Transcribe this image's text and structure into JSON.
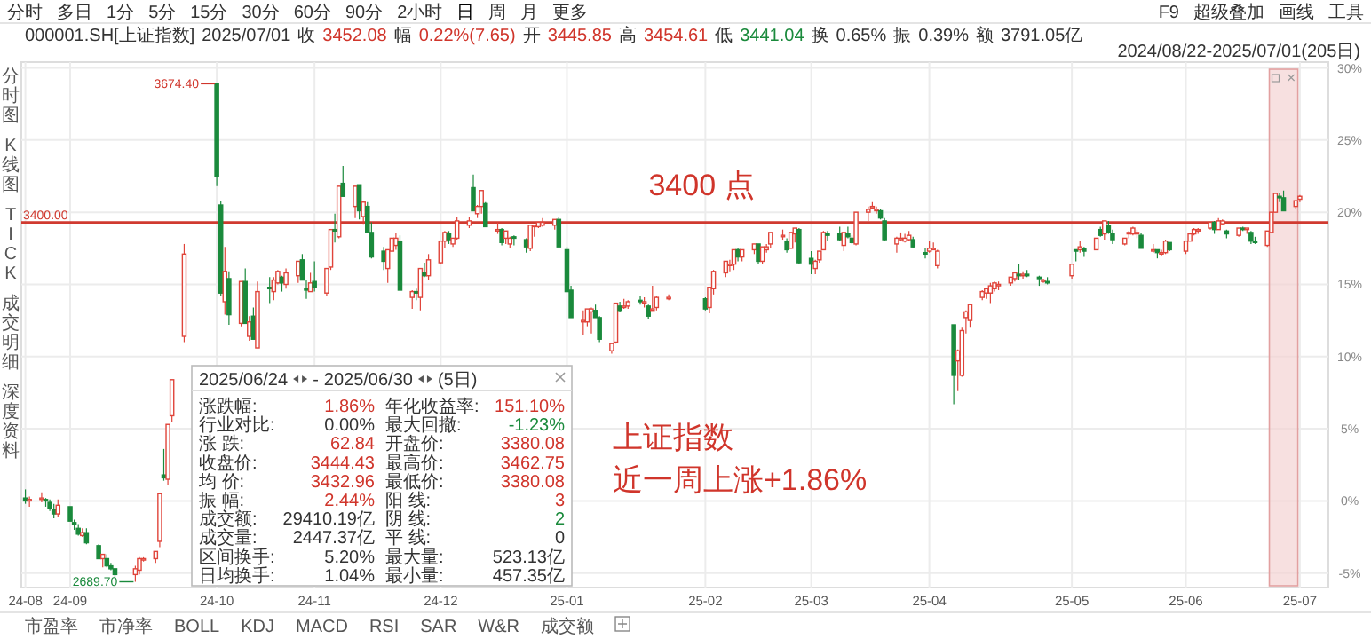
{
  "chart_data": {
    "type": "candlestick",
    "x": [
      "2024-08-22",
      "2024-08-23",
      "2024-08-26",
      "2024-08-27",
      "2024-08-28",
      "2024-08-29",
      "2024-08-30",
      "2024-09-02",
      "2024-09-03",
      "2024-09-04",
      "2024-09-05",
      "2024-09-06",
      "2024-09-09",
      "2024-09-10",
      "2024-09-11",
      "2024-09-12",
      "2024-09-13",
      "2024-09-18",
      "2024-09-19",
      "2024-09-20",
      "2024-09-23",
      "2024-09-24",
      "2024-09-25",
      "2024-09-26",
      "2024-09-27",
      "2024-09-30",
      "2024-10-08",
      "2024-10-09",
      "2024-10-10",
      "2024-10-11",
      "2024-10-14",
      "2024-10-15",
      "2024-10-16",
      "2024-10-17",
      "2024-10-18",
      "2024-10-21",
      "2024-10-22",
      "2024-10-23",
      "2024-10-24",
      "2024-10-25",
      "2024-10-28",
      "2024-10-29",
      "2024-10-30",
      "2024-10-31",
      "2024-11-01",
      "2024-11-04",
      "2024-11-05",
      "2024-11-06",
      "2024-11-07",
      "2024-11-08",
      "2024-11-11",
      "2024-11-12",
      "2024-11-13",
      "2024-11-14",
      "2024-11-15",
      "2024-11-18",
      "2024-11-19",
      "2024-11-20",
      "2024-11-21",
      "2024-11-22",
      "2024-11-25",
      "2024-11-26",
      "2024-11-27",
      "2024-11-28",
      "2024-11-29",
      "2024-12-02",
      "2024-12-03",
      "2024-12-04",
      "2024-12-05",
      "2024-12-06",
      "2024-12-09",
      "2024-12-10",
      "2024-12-11",
      "2024-12-12",
      "2024-12-13",
      "2024-12-16",
      "2024-12-17",
      "2024-12-18",
      "2024-12-19",
      "2024-12-20",
      "2024-12-23",
      "2024-12-24",
      "2024-12-25",
      "2024-12-26",
      "2024-12-27",
      "2024-12-30",
      "2024-12-31",
      "2025-01-02",
      "2025-01-03",
      "2025-01-06",
      "2025-01-07",
      "2025-01-08",
      "2025-01-09",
      "2025-01-10",
      "2025-01-13",
      "2025-01-14",
      "2025-01-15",
      "2025-01-16",
      "2025-01-17",
      "2025-01-20",
      "2025-01-21",
      "2025-01-22",
      "2025-01-23",
      "2025-01-24",
      "2025-01-27",
      "2025-02-05",
      "2025-02-06",
      "2025-02-07",
      "2025-02-10",
      "2025-02-11",
      "2025-02-12",
      "2025-02-13",
      "2025-02-14",
      "2025-02-17",
      "2025-02-18",
      "2025-02-19",
      "2025-02-20",
      "2025-02-21",
      "2025-02-24",
      "2025-02-25",
      "2025-02-26",
      "2025-02-27",
      "2025-02-28",
      "2025-03-03",
      "2025-03-04",
      "2025-03-05",
      "2025-03-06",
      "2025-03-07",
      "2025-03-10",
      "2025-03-11",
      "2025-03-12",
      "2025-03-13",
      "2025-03-14",
      "2025-03-17",
      "2025-03-18",
      "2025-03-19",
      "2025-03-20",
      "2025-03-21",
      "2025-03-24",
      "2025-03-25",
      "2025-03-26",
      "2025-03-27",
      "2025-03-28",
      "2025-03-31",
      "2025-04-01",
      "2025-04-02",
      "2025-04-03",
      "2025-04-07",
      "2025-04-08",
      "2025-04-09",
      "2025-04-10",
      "2025-04-11",
      "2025-04-14",
      "2025-04-15",
      "2025-04-16",
      "2025-04-17",
      "2025-04-18",
      "2025-04-21",
      "2025-04-22",
      "2025-04-23",
      "2025-04-24",
      "2025-04-25",
      "2025-04-28",
      "2025-04-29",
      "2025-04-30",
      "2025-05-06",
      "2025-05-07",
      "2025-05-08",
      "2025-05-09",
      "2025-05-12",
      "2025-05-13",
      "2025-05-14",
      "2025-05-15",
      "2025-05-16",
      "2025-05-19",
      "2025-05-20",
      "2025-05-21",
      "2025-05-22",
      "2025-05-23",
      "2025-05-26",
      "2025-05-27",
      "2025-05-28",
      "2025-05-29",
      "2025-05-30",
      "2025-06-03",
      "2025-06-04",
      "2025-06-05",
      "2025-06-06",
      "2025-06-09",
      "2025-06-10",
      "2025-06-11",
      "2025-06-12",
      "2025-06-13",
      "2025-06-16",
      "2025-06-17",
      "2025-06-18",
      "2025-06-19",
      "2025-06-20",
      "2025-06-23",
      "2025-06-24",
      "2025-06-25",
      "2025-06-26",
      "2025-06-27",
      "2025-06-30",
      "2025-07-01"
    ],
    "ohlc": [
      [
        0.2,
        0.8,
        -0.2,
        0.0
      ],
      [
        0.0,
        0.3,
        -0.4,
        0.1
      ],
      [
        0.1,
        0.6,
        -0.1,
        0.2
      ],
      [
        0.1,
        0.2,
        -0.4,
        0.0
      ],
      [
        -0.1,
        0.1,
        -0.7,
        -0.5
      ],
      [
        -0.6,
        -0.2,
        -1.2,
        -0.9
      ],
      [
        -0.9,
        0.1,
        -1.1,
        -0.3
      ],
      [
        -0.4,
        -0.4,
        -1.4,
        -1.4
      ],
      [
        -1.5,
        -1.3,
        -2.0,
        -1.6
      ],
      [
        -1.9,
        -1.6,
        -2.4,
        -2.3
      ],
      [
        -2.4,
        -1.9,
        -2.5,
        -2.2
      ],
      [
        -2.2,
        -1.9,
        -3.0,
        -2.9
      ],
      [
        -3.1,
        -3.0,
        -4.0,
        -4.0
      ],
      [
        -4.0,
        -3.7,
        -4.6,
        -3.7
      ],
      [
        -4.0,
        -3.7,
        -4.6,
        -4.5
      ],
      [
        -4.5,
        -4.3,
        -4.8,
        -4.7
      ],
      [
        -4.7,
        -4.7,
        -5.3,
        -5.1
      ],
      [
        -5.1,
        -4.5,
        -5.6,
        -4.7
      ],
      [
        -4.8,
        -3.9,
        -5.1,
        -4.0
      ],
      [
        -4.0,
        -3.9,
        -4.2,
        -4.0
      ],
      [
        -4.0,
        -3.5,
        -4.3,
        -3.5
      ],
      [
        -2.8,
        0.5,
        -3.2,
        0.5
      ],
      [
        1.8,
        3.6,
        1.4,
        1.6
      ],
      [
        1.5,
        5.3,
        1.1,
        5.3
      ],
      [
        5.9,
        8.4,
        5.5,
        8.4
      ],
      [
        11.4,
        17.8,
        11.0,
        17.1
      ],
      [
        28.9,
        28.9,
        21.8,
        22.5
      ],
      [
        20.5,
        20.8,
        14.2,
        14.4
      ],
      [
        13.8,
        17.6,
        12.9,
        15.9
      ],
      [
        15.4,
        15.9,
        12.2,
        12.9
      ],
      [
        12.3,
        15.2,
        12.1,
        15.2
      ],
      [
        15.2,
        16.1,
        12.3,
        12.3
      ],
      [
        11.4,
        12.8,
        11.1,
        12.4
      ],
      [
        12.8,
        13.4,
        11.2,
        11.2
      ],
      [
        10.6,
        15.2,
        10.6,
        14.5
      ],
      [
        14.8,
        15.5,
        13.7,
        14.7
      ],
      [
        14.5,
        15.5,
        13.9,
        15.3
      ],
      [
        15.1,
        16.0,
        15.0,
        15.9
      ],
      [
        15.5,
        15.6,
        14.5,
        15.1
      ],
      [
        15.0,
        16.1,
        14.7,
        15.8
      ],
      [
        15.6,
        16.6,
        15.1,
        16.6
      ],
      [
        16.7,
        17.1,
        15.3,
        15.3
      ],
      [
        14.7,
        15.3,
        14.0,
        14.6
      ],
      [
        14.5,
        15.8,
        14.5,
        15.1
      ],
      [
        15.2,
        16.6,
        14.5,
        14.8
      ],
      [
        14.4,
        16.1,
        14.2,
        16.1
      ],
      [
        16.2,
        18.8,
        16.0,
        18.8
      ],
      [
        18.8,
        19.9,
        17.9,
        18.7
      ],
      [
        18.3,
        21.8,
        18.2,
        21.8
      ],
      [
        22.0,
        23.2,
        21.1,
        21.1
      ],
      [
        20.4,
        21.8,
        19.6,
        21.8
      ],
      [
        21.9,
        21.9,
        19.5,
        20.1
      ],
      [
        19.7,
        20.8,
        19.2,
        20.7
      ],
      [
        20.4,
        20.7,
        18.6,
        18.6
      ],
      [
        18.6,
        19.3,
        16.8,
        16.9
      ],
      [
        17.3,
        17.6,
        16.0,
        16.6
      ],
      [
        16.1,
        17.4,
        15.1,
        17.4
      ],
      [
        17.3,
        18.2,
        17.3,
        18.2
      ],
      [
        17.7,
        18.6,
        17.4,
        18.2
      ],
      [
        18.0,
        18.4,
        14.6,
        14.6
      ],
      [
        14.1,
        14.6,
        13.3,
        14.5
      ],
      [
        14.5,
        14.7,
        13.9,
        14.4
      ],
      [
        14.1,
        16.1,
        13.2,
        16.1
      ],
      [
        15.8,
        16.5,
        15.5,
        15.6
      ],
      [
        15.6,
        17.1,
        15.3,
        16.7
      ],
      [
        16.5,
        18.0,
        16.4,
        18.0
      ],
      [
        18.0,
        18.7,
        17.5,
        18.6
      ],
      [
        18.5,
        18.7,
        17.8,
        18.1
      ],
      [
        17.8,
        18.2,
        17.6,
        18.2
      ],
      [
        18.2,
        19.7,
        18.1,
        19.4
      ],
      [
        19.1,
        19.7,
        18.9,
        19.4
      ],
      [
        21.7,
        22.6,
        20.1,
        20.1
      ],
      [
        19.9,
        20.5,
        19.6,
        20.4
      ],
      [
        20.4,
        21.5,
        19.9,
        21.5
      ],
      [
        20.6,
        20.7,
        19.0,
        19.0
      ],
      [
        18.8,
        19.3,
        18.5,
        18.8
      ],
      [
        18.8,
        18.9,
        17.7,
        17.9
      ],
      [
        18.2,
        18.7,
        17.8,
        18.7
      ],
      [
        17.8,
        18.3,
        17.5,
        18.2
      ],
      [
        18.3,
        18.4,
        17.7,
        18.2
      ],
      [
        18.1,
        18.2,
        17.2,
        17.6
      ],
      [
        17.5,
        19.1,
        17.3,
        19.1
      ],
      [
        19.0,
        19.1,
        18.3,
        19.1
      ],
      [
        19.0,
        19.3,
        18.9,
        19.3
      ],
      [
        19.1,
        19.6,
        19.0,
        19.3
      ],
      [
        19.1,
        19.5,
        18.8,
        19.5
      ],
      [
        19.5,
        19.7,
        17.6,
        17.6
      ],
      [
        17.4,
        17.6,
        14.5,
        14.5
      ],
      [
        14.6,
        14.9,
        12.7,
        12.7
      ],
      [
        12.5,
        13.2,
        11.5,
        12.5
      ],
      [
        12.4,
        13.3,
        12.1,
        13.3
      ],
      [
        13.1,
        13.4,
        11.6,
        13.3
      ],
      [
        13.2,
        13.6,
        12.7,
        12.7
      ],
      [
        12.7,
        12.8,
        11.0,
        11.2
      ],
      [
        10.4,
        10.9,
        10.2,
        10.9
      ],
      [
        11.0,
        13.7,
        10.9,
        13.7
      ],
      [
        13.5,
        13.8,
        13.1,
        13.2
      ],
      [
        13.4,
        14.0,
        13.3,
        13.5
      ],
      [
        13.5,
        13.9,
        13.3,
        13.8
      ],
      [
        13.9,
        14.2,
        13.6,
        13.8
      ],
      [
        13.8,
        14.1,
        13.4,
        13.8
      ],
      [
        13.5,
        13.6,
        12.6,
        12.8
      ],
      [
        13.3,
        14.9,
        13.3,
        13.3
      ],
      [
        13.4,
        14.2,
        13.2,
        14.1
      ],
      [
        14.1,
        14.3,
        13.9,
        14.1
      ],
      [
        14.0,
        14.1,
        13.2,
        13.3
      ],
      [
        13.4,
        14.8,
        13.0,
        14.8
      ],
      [
        14.7,
        16.0,
        14.3,
        15.9
      ],
      [
        15.8,
        16.6,
        15.5,
        16.6
      ],
      [
        16.4,
        16.7,
        15.9,
        16.4
      ],
      [
        16.4,
        17.4,
        16.0,
        17.4
      ],
      [
        17.4,
        17.5,
        16.6,
        16.9
      ],
      [
        16.9,
        17.4,
        16.6,
        17.4
      ],
      [
        17.4,
        17.8,
        17.1,
        17.8
      ],
      [
        17.8,
        17.8,
        16.4,
        16.6
      ],
      [
        16.6,
        17.6,
        16.4,
        17.6
      ],
      [
        17.4,
        17.8,
        17.2,
        17.6
      ],
      [
        17.8,
        18.6,
        17.5,
        18.6
      ],
      [
        18.4,
        18.8,
        18.1,
        18.4
      ],
      [
        18.0,
        18.2,
        17.2,
        17.4
      ],
      [
        17.5,
        18.6,
        17.5,
        18.6
      ],
      [
        18.5,
        18.9,
        17.9,
        18.9
      ],
      [
        18.8,
        18.9,
        16.4,
        16.5
      ],
      [
        16.8,
        17.3,
        15.7,
        16.4
      ],
      [
        16.1,
        16.7,
        15.7,
        16.6
      ],
      [
        16.7,
        17.3,
        16.5,
        17.3
      ],
      [
        17.4,
        18.7,
        17.4,
        18.6
      ],
      [
        18.5,
        18.7,
        18.0,
        18.4
      ],
      [
        18.5,
        19.0,
        18.0,
        18.1
      ],
      [
        17.7,
        18.6,
        17.3,
        18.6
      ],
      [
        18.5,
        19.0,
        18.2,
        18.3
      ],
      [
        18.2,
        18.4,
        17.8,
        17.9
      ],
      [
        17.8,
        20.0,
        17.7,
        20.0
      ],
      [
        20.0,
        20.4,
        19.4,
        20.2
      ],
      [
        20.3,
        20.7,
        20.2,
        20.4
      ],
      [
        20.1,
        20.4,
        19.9,
        20.2
      ],
      [
        20.1,
        20.2,
        19.5,
        19.6
      ],
      [
        19.4,
        19.6,
        18.0,
        18.1
      ],
      [
        17.8,
        18.3,
        17.2,
        18.2
      ],
      [
        18.2,
        18.6,
        18.0,
        18.2
      ],
      [
        18.0,
        18.5,
        17.9,
        18.2
      ],
      [
        18.1,
        18.7,
        18.0,
        18.4
      ],
      [
        18.1,
        18.3,
        17.5,
        17.6
      ],
      [
        17.2,
        17.5,
        16.8,
        17.1
      ],
      [
        17.3,
        18.0,
        17.2,
        17.5
      ],
      [
        17.5,
        17.9,
        17.4,
        17.5
      ],
      [
        16.3,
        17.4,
        16.1,
        17.3
      ],
      [
        12.2,
        12.2,
        6.7,
        8.7
      ],
      [
        9.7,
        10.5,
        7.6,
        10.4
      ],
      [
        8.7,
        12.0,
        8.6,
        11.8
      ],
      [
        12.7,
        13.2,
        11.6,
        13.1
      ],
      [
        12.5,
        13.6,
        12.0,
        13.6
      ],
      [
        14.1,
        14.6,
        13.9,
        14.5
      ],
      [
        14.4,
        14.7,
        14.0,
        14.7
      ],
      [
        14.4,
        15.1,
        13.7,
        14.9
      ],
      [
        14.7,
        15.2,
        14.5,
        15.1
      ],
      [
        15.0,
        15.2,
        14.6,
        15.0
      ],
      [
        15.1,
        15.5,
        14.9,
        15.5
      ],
      [
        15.4,
        15.8,
        15.2,
        15.8
      ],
      [
        15.7,
        16.4,
        15.3,
        15.6
      ],
      [
        15.6,
        15.9,
        15.4,
        15.7
      ],
      [
        15.7,
        16.0,
        15.5,
        15.6
      ],
      [
        15.5,
        15.6,
        14.9,
        15.4
      ],
      [
        15.3,
        15.4,
        15.1,
        15.3
      ],
      [
        15.2,
        15.5,
        15.0,
        15.1
      ],
      [
        15.6,
        16.4,
        15.4,
        16.4
      ],
      [
        17.4,
        17.4,
        16.6,
        17.3
      ],
      [
        17.4,
        18.0,
        17.2,
        17.6
      ],
      [
        17.5,
        17.6,
        16.9,
        17.3
      ],
      [
        17.4,
        18.2,
        17.4,
        18.2
      ],
      [
        18.8,
        19.0,
        18.3,
        18.4
      ],
      [
        18.5,
        19.4,
        18.1,
        19.4
      ],
      [
        19.1,
        19.4,
        18.5,
        18.6
      ],
      [
        18.5,
        18.8,
        17.8,
        18.1
      ],
      [
        17.8,
        18.2,
        17.7,
        18.2
      ],
      [
        18.5,
        18.7,
        18.2,
        18.6
      ],
      [
        18.5,
        19.0,
        18.4,
        18.9
      ],
      [
        18.6,
        18.8,
        18.2,
        18.6
      ],
      [
        18.4,
        18.6,
        17.5,
        17.5
      ],
      [
        17.4,
        17.8,
        17.2,
        17.4
      ],
      [
        17.4,
        17.4,
        16.8,
        17.2
      ],
      [
        17.2,
        17.4,
        17.0,
        17.2
      ],
      [
        17.2,
        18.1,
        17.1,
        18.0
      ],
      [
        17.9,
        17.9,
        17.3,
        17.4
      ],
      [
        17.3,
        18.0,
        17.1,
        18.0
      ],
      [
        18.0,
        18.5,
        18.0,
        18.5
      ],
      [
        18.5,
        18.9,
        18.4,
        18.8
      ],
      [
        18.8,
        18.9,
        18.5,
        18.8
      ],
      [
        18.9,
        19.3,
        18.8,
        19.3
      ],
      [
        19.3,
        19.4,
        18.5,
        18.8
      ],
      [
        18.8,
        19.6,
        18.8,
        19.4
      ],
      [
        19.2,
        19.5,
        19.1,
        19.4
      ],
      [
        18.7,
        18.8,
        18.2,
        18.5
      ],
      [
        18.4,
        18.9,
        18.3,
        18.9
      ],
      [
        18.9,
        19.0,
        18.7,
        18.8
      ],
      [
        18.8,
        18.9,
        18.5,
        18.9
      ],
      [
        18.6,
        18.7,
        17.8,
        18.0
      ],
      [
        18.0,
        18.3,
        17.8,
        17.9
      ],
      [
        17.7,
        18.7,
        17.6,
        18.7
      ],
      [
        18.6,
        20.0,
        18.6,
        20.0
      ],
      [
        20.0,
        21.3,
        20.0,
        21.3
      ],
      [
        21.1,
        21.3,
        20.7,
        21.0
      ],
      [
        21.0,
        21.5,
        20.1,
        20.1
      ],
      [
        20.4,
        20.8,
        20.2,
        20.8
      ],
      [
        20.9,
        21.2,
        20.7,
        21.1
      ]
    ],
    "xlim": [
      "2024-08-21",
      "2025-07-08"
    ],
    "xticks": [
      {
        "value": "2024-08-22",
        "label": "24-08"
      },
      {
        "value": "2024-09-02",
        "label": "24-09"
      },
      {
        "value": "2024-10-08",
        "label": "24-10"
      },
      {
        "value": "2024-11-01",
        "label": "24-11"
      },
      {
        "value": "2024-12-02",
        "label": "24-12"
      },
      {
        "value": "2025-01-02",
        "label": "25-01"
      },
      {
        "value": "2025-02-05",
        "label": "25-02"
      },
      {
        "value": "2025-03-03",
        "label": "25-03"
      },
      {
        "value": "2025-04-01",
        "label": "25-04"
      },
      {
        "value": "2025-05-06",
        "label": "25-05"
      },
      {
        "value": "2025-06-03",
        "label": "25-06"
      },
      {
        "value": "2025-07-01",
        "label": "25-07"
      }
    ],
    "ylim": [
      -6,
      30.4
    ],
    "yticks": [
      {
        "value": -5,
        "label": "-5%"
      },
      {
        "value": 0,
        "label": "0%"
      },
      {
        "value": 5,
        "label": "5%"
      },
      {
        "value": 10,
        "label": "10%"
      },
      {
        "value": 15,
        "label": "15%"
      },
      {
        "value": 20,
        "label": "20%"
      },
      {
        "value": 25,
        "label": "25%"
      },
      {
        "value": 30,
        "label": "30%"
      }
    ],
    "grid": true,
    "ref_lines": [
      {
        "axis": "y",
        "value": 19.3,
        "color": "#d03a30"
      }
    ],
    "bands": [
      {
        "axis": "x",
        "from": "2025-06-24",
        "to": "2025-06-30",
        "color": "#f3d3d3"
      }
    ],
    "annotations": [
      {
        "text": "3674.40",
        "x": "2024-10-08",
        "y": 28.9
      },
      {
        "text": "2689.70",
        "x": "2024-09-18",
        "y": -5.6
      },
      "3400 点",
      "上证指数",
      "近一周上涨+1.86%",
      "分时",
      "多日",
      "1分",
      "5分",
      "15分",
      "30分",
      "60分",
      "90分",
      "2小时",
      "日",
      "周",
      "月",
      "更多",
      "F9",
      "超级叠加",
      "画线",
      "工具",
      "000001.SH[上证指数]",
      "2025/07/01",
      "收",
      "3452.08",
      "幅",
      "0.22%(7.65)",
      "开",
      "3445.85",
      "高",
      "3454.61",
      "低",
      "3441.04",
      "换",
      "0.65%",
      "振",
      "0.39%",
      "额",
      "3791.05亿",
      "2024/08/22-2025/07/01(205日)",
      "分时图",
      "K线图",
      "TICK",
      "成交明细",
      "深度资料",
      "市盈率",
      "市净率",
      "BOLL",
      "KDJ",
      "MACD",
      "RSI",
      "SAR",
      "W&R",
      "成交额",
      "2025/06/24",
      "-",
      "2025/06/30",
      "(5日)",
      "涨跌幅:",
      "1.86%",
      "年化收益率:",
      "151.10%",
      "行业对比:",
      "0.00%",
      "最大回撤:",
      "-1.23%",
      "涨 跌:",
      "62.84",
      "开盘价:",
      "3380.08",
      "收盘价:",
      "3444.43",
      "最高价:",
      "3462.75",
      "均 价:",
      "3432.96",
      "最低价:",
      "3380.08",
      "振 幅:",
      "2.44%",
      "阳 线:",
      "3",
      "成交额:",
      "29410.19亿",
      "阴 线:",
      "2",
      "成交量:",
      "2447.37亿",
      "平 线:",
      "0",
      "区间换手:",
      "5.20%",
      "最大量:",
      "523.13亿",
      "日均换手:",
      "1.04%",
      "最小量:",
      "457.35亿",
      "3400.00"
    ]
  }
}
